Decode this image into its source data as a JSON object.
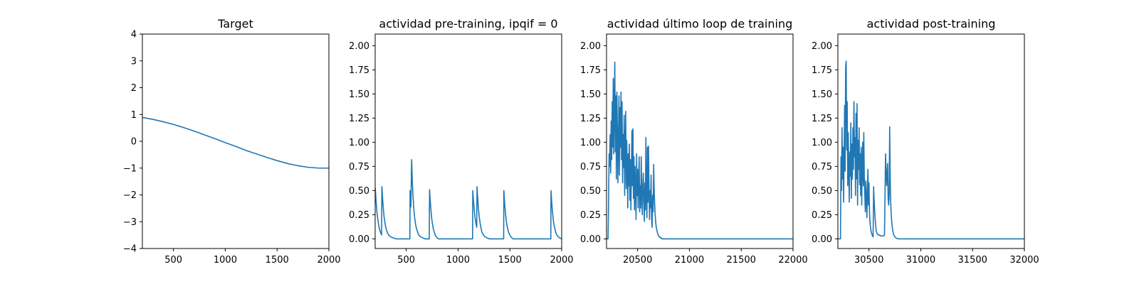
{
  "figure": {
    "background": "#ffffff",
    "line_color": "#1f77b4"
  },
  "chart_data": [
    {
      "type": "line",
      "title": "Target",
      "xlim": [
        200,
        2000
      ],
      "ylim": [
        -4,
        4
      ],
      "xticks": [
        500,
        1000,
        1500,
        2000
      ],
      "yticks": [
        -4,
        -3,
        -2,
        -1,
        0,
        1,
        2,
        3,
        4
      ],
      "ytick_labels": [
        "−4",
        "−3",
        "−2",
        "−1",
        "0",
        "1",
        "2",
        "3",
        "4"
      ],
      "series": [
        {
          "x": [
            200,
            300,
            400,
            500,
            600,
            700,
            800,
            900,
            1000,
            1100,
            1200,
            1300,
            1400,
            1500,
            1600,
            1700,
            1800,
            1900,
            2000
          ],
          "y": [
            0.89,
            0.82,
            0.73,
            0.63,
            0.51,
            0.38,
            0.24,
            0.1,
            -0.05,
            -0.19,
            -0.34,
            -0.47,
            -0.6,
            -0.72,
            -0.83,
            -0.91,
            -0.97,
            -1.0,
            -1.0
          ]
        }
      ]
    },
    {
      "type": "line",
      "title": "actividad pre-training, ipqif = 0",
      "xlim": [
        200,
        2000
      ],
      "ylim": [
        -0.1,
        2.12
      ],
      "xticks": [
        500,
        1000,
        1500,
        2000
      ],
      "yticks": [
        0.0,
        0.25,
        0.5,
        0.75,
        1.0,
        1.25,
        1.5,
        1.75,
        2.0
      ],
      "ytick_labels": [
        "0.00",
        "0.25",
        "0.50",
        "0.75",
        "1.00",
        "1.25",
        "1.50",
        "1.75",
        "2.00"
      ],
      "series": [
        {
          "x": [
            200,
            203,
            210,
            218,
            226,
            234,
            242,
            250,
            262,
            265,
            270,
            278,
            286,
            294,
            302,
            310,
            320,
            330,
            350,
            400,
            500,
            535,
            537,
            545,
            550,
            552,
            555,
            558,
            566,
            574,
            582,
            590,
            598,
            610,
            620,
            640,
            680,
            722,
            725,
            730,
            738,
            746,
            754,
            762,
            770,
            780,
            790,
            810,
            900,
            1000,
            1100,
            1140,
            1142,
            1150,
            1158,
            1166,
            1174,
            1180,
            1183,
            1188,
            1196,
            1204,
            1212,
            1220,
            1230,
            1245,
            1260,
            1300,
            1400,
            1440,
            1442,
            1450,
            1458,
            1466,
            1474,
            1482,
            1490,
            1500,
            1510,
            1530,
            1600,
            1700,
            1800,
            1895,
            1897,
            1905,
            1913,
            1921,
            1929,
            1937,
            1945,
            1953,
            1960,
            1980,
            2000
          ],
          "y": [
            0.53,
            0.49,
            0.37,
            0.27,
            0.2,
            0.14,
            0.1,
            0.07,
            0.04,
            0.54,
            0.45,
            0.32,
            0.23,
            0.17,
            0.12,
            0.09,
            0.06,
            0.04,
            0.02,
            0.0,
            0.0,
            0.0,
            0.5,
            0.33,
            0.7,
            0.82,
            0.74,
            0.6,
            0.43,
            0.3,
            0.21,
            0.15,
            0.11,
            0.07,
            0.04,
            0.02,
            0.0,
            0.0,
            0.51,
            0.42,
            0.3,
            0.21,
            0.15,
            0.1,
            0.07,
            0.04,
            0.02,
            0.0,
            0.0,
            0.0,
            0.0,
            0.0,
            0.5,
            0.38,
            0.28,
            0.2,
            0.15,
            0.12,
            0.54,
            0.45,
            0.32,
            0.23,
            0.17,
            0.12,
            0.07,
            0.04,
            0.02,
            0.0,
            0.0,
            0.0,
            0.5,
            0.36,
            0.26,
            0.18,
            0.13,
            0.09,
            0.06,
            0.04,
            0.02,
            0.0,
            0.0,
            0.0,
            0.0,
            0.0,
            0.5,
            0.36,
            0.26,
            0.18,
            0.13,
            0.09,
            0.06,
            0.04,
            0.03,
            0.01,
            0.0
          ]
        }
      ]
    },
    {
      "type": "line",
      "title": "actividad último loop de training",
      "xlim": [
        20200,
        22000
      ],
      "ylim": [
        -0.1,
        2.12
      ],
      "xticks": [
        20500,
        21000,
        21500,
        22000
      ],
      "yticks": [
        0.0,
        0.25,
        0.5,
        0.75,
        1.0,
        1.25,
        1.5,
        1.75,
        2.0
      ],
      "ytick_labels": [
        "0.00",
        "0.25",
        "0.50",
        "0.75",
        "1.00",
        "1.25",
        "1.50",
        "1.75",
        "2.00"
      ],
      "series": [
        {
          "x": [
            20200,
            20215,
            20220,
            20225,
            20230,
            20235,
            20240,
            20245,
            20250,
            20255,
            20260,
            20265,
            20270,
            20275,
            20280,
            20285,
            20290,
            20295,
            20300,
            20305,
            20310,
            20315,
            20320,
            20325,
            20330,
            20335,
            20340,
            20345,
            20350,
            20355,
            20360,
            20365,
            20370,
            20375,
            20380,
            20385,
            20390,
            20395,
            20400,
            20405,
            20410,
            20415,
            20420,
            20425,
            20430,
            20435,
            20440,
            20445,
            20450,
            20455,
            20460,
            20465,
            20470,
            20475,
            20480,
            20485,
            20490,
            20495,
            20500,
            20505,
            20510,
            20515,
            20520,
            20525,
            20530,
            20535,
            20540,
            20545,
            20550,
            20555,
            20560,
            20565,
            20570,
            20575,
            20580,
            20585,
            20590,
            20595,
            20600,
            20605,
            20610,
            20615,
            20620,
            20625,
            20630,
            20635,
            20640,
            20645,
            20650,
            20655,
            20660,
            20665,
            20670,
            20675,
            20680,
            20685,
            20690,
            20695,
            20700,
            20705,
            20710,
            20715,
            20720,
            20725,
            20730,
            20735,
            20740,
            20745,
            20750,
            20760,
            20770,
            20780,
            20790,
            20800,
            20815,
            20830,
            20850,
            20900,
            21000,
            21500,
            22000
          ],
          "y": [
            0.0,
            0.0,
            0.4,
            0.88,
            0.75,
            1.08,
            0.68,
            1.22,
            0.82,
            1.42,
            0.95,
            1.66,
            0.88,
            1.38,
            1.83,
            0.9,
            1.48,
            0.62,
            1.52,
            1.12,
            0.58,
            1.06,
            1.48,
            0.66,
            1.36,
            0.95,
            1.52,
            0.82,
            1.42,
            0.58,
            1.08,
            0.74,
            1.28,
            0.45,
            0.95,
            1.32,
            0.52,
            1.02,
            0.78,
            0.32,
            0.88,
            0.55,
            0.98,
            0.4,
            0.82,
            0.3,
            0.65,
            1.12,
            0.55,
            1.14,
            0.42,
            0.85,
            0.3,
            0.75,
            0.52,
            0.2,
            0.88,
            0.45,
            0.72,
            0.32,
            0.62,
            0.85,
            0.28,
            0.55,
            0.32,
            0.85,
            0.48,
            0.25,
            0.55,
            0.68,
            0.4,
            0.18,
            0.58,
            0.3,
            1.05,
            0.45,
            0.22,
            0.95,
            0.38,
            0.96,
            0.52,
            0.2,
            0.5,
            0.32,
            0.66,
            0.22,
            0.12,
            0.45,
            0.28,
            0.77,
            0.5,
            0.35,
            0.24,
            0.17,
            0.12,
            0.09,
            0.07,
            0.05,
            0.04,
            0.03,
            0.02,
            0.02,
            0.01,
            0.01,
            0.01,
            0.0,
            0.0,
            0.0,
            0.0,
            0.0,
            0.0,
            0.0,
            0.0,
            0.0,
            0.0,
            0.0,
            0.0,
            0.0,
            0.0,
            0.0,
            0.0
          ]
        }
      ]
    },
    {
      "type": "line",
      "title": "actividad post-training",
      "xlim": [
        30200,
        32000
      ],
      "ylim": [
        -0.1,
        2.12
      ],
      "xticks": [
        30500,
        31000,
        31500,
        32000
      ],
      "yticks": [
        0.0,
        0.25,
        0.5,
        0.75,
        1.0,
        1.25,
        1.5,
        1.75,
        2.0
      ],
      "ytick_labels": [
        "0.00",
        "0.25",
        "0.50",
        "0.75",
        "1.00",
        "1.25",
        "1.50",
        "1.75",
        "2.00"
      ],
      "series": [
        {
          "x": [
            30200,
            30225,
            30230,
            30235,
            30240,
            30245,
            30250,
            30255,
            30260,
            30265,
            30270,
            30275,
            30280,
            30285,
            30290,
            30295,
            30300,
            30305,
            30310,
            30315,
            30320,
            30325,
            30330,
            30335,
            30340,
            30345,
            30350,
            30355,
            30360,
            30365,
            30370,
            30375,
            30380,
            30385,
            30390,
            30395,
            30400,
            30405,
            30410,
            30415,
            30420,
            30425,
            30430,
            30435,
            30440,
            30445,
            30450,
            30455,
            30460,
            30465,
            30470,
            30475,
            30480,
            30485,
            30490,
            30495,
            30500,
            30505,
            30510,
            30515,
            30520,
            30525,
            30530,
            30535,
            30540,
            30545,
            30550,
            30560,
            30570,
            30580,
            30590,
            30600,
            30610,
            30620,
            30630,
            30640,
            30650,
            30660,
            30670,
            30680,
            30685,
            30690,
            30695,
            30700,
            30705,
            30710,
            30715,
            30720,
            30725,
            30730,
            30740,
            30750,
            30760,
            30780,
            30800,
            30850,
            30900,
            31000,
            31500,
            32000
          ],
          "y": [
            0.0,
            0.0,
            0.85,
            0.5,
            1.15,
            0.62,
            0.95,
            0.38,
            0.82,
            1.38,
            0.7,
            1.78,
            1.84,
            0.92,
            1.42,
            0.55,
            1.1,
            0.72,
            0.38,
            0.9,
            0.65,
            1.2,
            0.42,
            0.98,
            0.62,
            1.15,
            0.72,
            1.42,
            0.85,
            1.05,
            0.45,
            1.3,
            0.62,
            1.4,
            0.35,
            1.02,
            0.72,
            1.15,
            0.56,
            0.88,
            0.45,
            0.95,
            0.35,
            0.78,
            1.0,
            0.55,
            1.1,
            0.65,
            0.45,
            0.28,
            0.6,
            0.42,
            0.22,
            0.5,
            0.72,
            0.35,
            0.58,
            0.28,
            0.17,
            0.12,
            0.08,
            0.06,
            0.04,
            0.03,
            0.02,
            0.54,
            0.4,
            0.2,
            0.08,
            0.05,
            0.04,
            0.04,
            0.03,
            0.03,
            0.03,
            0.03,
            0.04,
            0.88,
            0.55,
            0.78,
            0.42,
            0.35,
            0.45,
            1.16,
            0.62,
            0.38,
            0.25,
            0.17,
            0.12,
            0.08,
            0.04,
            0.02,
            0.01,
            0.0,
            0.0,
            0.0,
            0.0,
            0.0,
            0.0,
            0.0
          ]
        }
      ]
    }
  ]
}
